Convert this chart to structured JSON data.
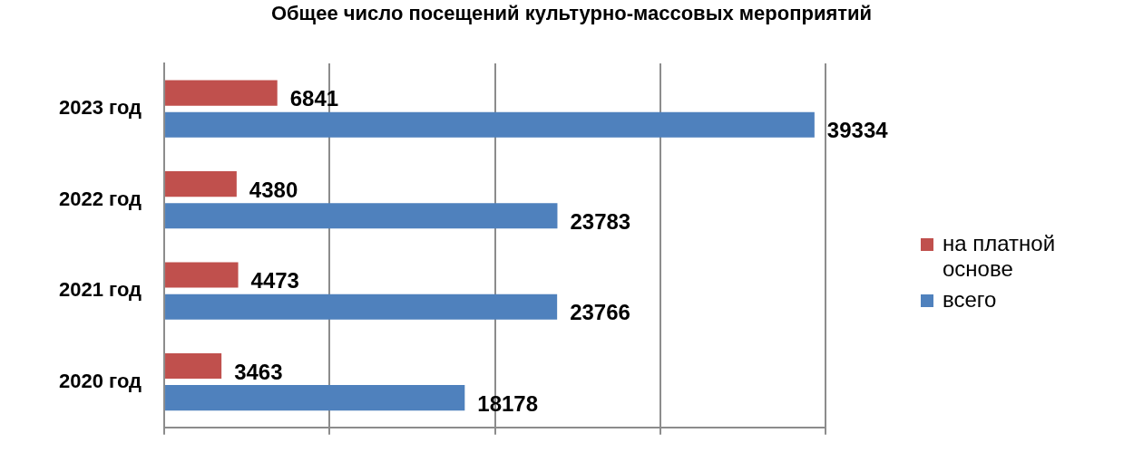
{
  "chart_data": {
    "type": "bar",
    "orientation": "horizontal",
    "title": "Общее число посещений культурно-массовых мероприятий",
    "categories": [
      "2023 год",
      "2022 год",
      "2021 год",
      "2020 год"
    ],
    "series": [
      {
        "name": "на платной основе",
        "color": "#c0504d",
        "values": [
          6841,
          4380,
          4473,
          3463
        ]
      },
      {
        "name": "всего",
        "color": "#4f81bd",
        "values": [
          39334,
          23783,
          23766,
          18178
        ]
      }
    ],
    "xlim": [
      0,
      40000
    ],
    "xticks": [
      {
        "value": 0,
        "label": null
      },
      {
        "value": 10000,
        "label": null
      },
      {
        "value": 20000,
        "label": null
      },
      {
        "value": 30000,
        "label": null
      },
      {
        "value": 40000,
        "label": null
      }
    ],
    "tick_labels": "y",
    "grid": "x",
    "legend": "right",
    "data_labels": true
  }
}
